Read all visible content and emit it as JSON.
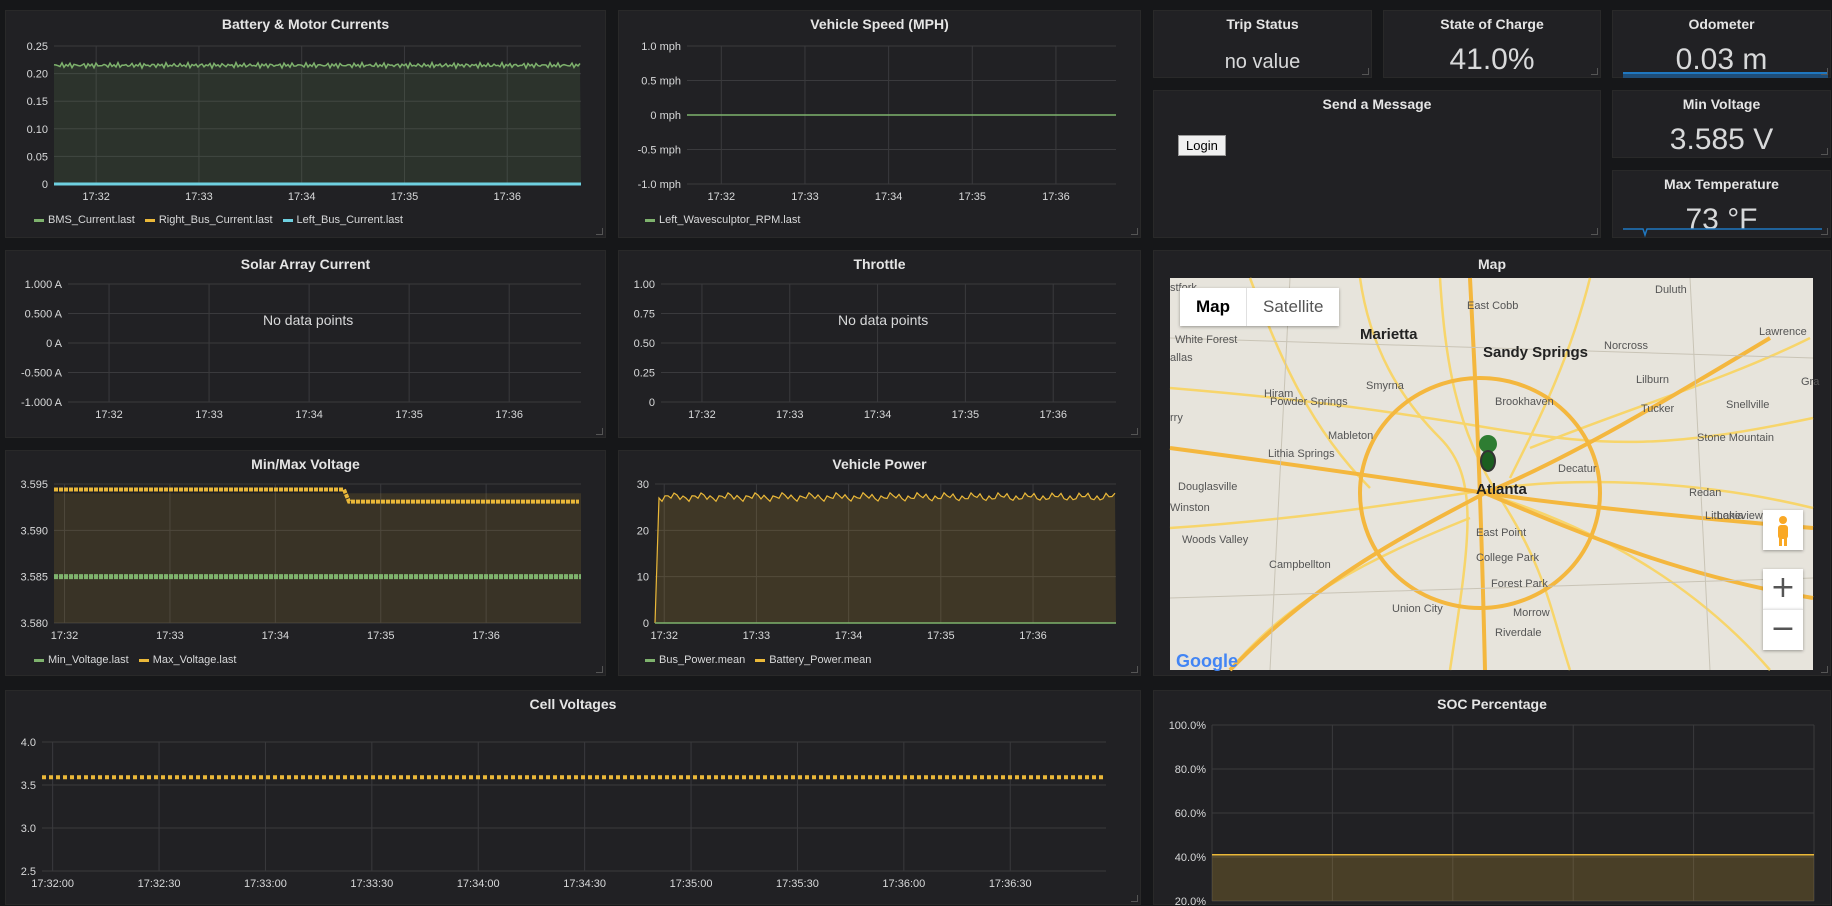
{
  "panels": {
    "battery": {
      "title": "Battery & Motor Currents",
      "legend": [
        {
          "name": "BMS_Current.last",
          "color": "#7eb26d"
        },
        {
          "name": "Right_Bus_Current.last",
          "color": "#eab839"
        },
        {
          "name": "Left_Bus_Current.last",
          "color": "#6ed0e0"
        }
      ],
      "yticks": [
        "0.25",
        "0.20",
        "0.15",
        "0.10",
        "0.05",
        "0"
      ]
    },
    "speed": {
      "title": "Vehicle Speed (MPH)",
      "legend": [
        {
          "name": "Left_Wavesculptor_RPM.last",
          "color": "#7eb26d"
        }
      ],
      "yticks": [
        "1.0 mph",
        "0.5 mph",
        "0 mph",
        "-0.5 mph",
        "-1.0 mph"
      ]
    },
    "solar": {
      "title": "Solar Array Current",
      "nodata": "No data points",
      "yticks": [
        "1.000 A",
        "0.500 A",
        "0 A",
        "-0.500 A",
        "-1.000 A"
      ]
    },
    "throttle": {
      "title": "Throttle",
      "nodata": "No data points",
      "yticks": [
        "1.00",
        "0.75",
        "0.50",
        "0.25",
        "0"
      ]
    },
    "minmax": {
      "title": "Min/Max Voltage",
      "legend": [
        {
          "name": "Min_Voltage.last",
          "color": "#7eb26d"
        },
        {
          "name": "Max_Voltage.last",
          "color": "#eab839"
        }
      ],
      "yticks": [
        "3.595",
        "3.590",
        "3.585",
        "3.580"
      ]
    },
    "power": {
      "title": "Vehicle Power",
      "legend": [
        {
          "name": "Bus_Power.mean",
          "color": "#7eb26d"
        },
        {
          "name": "Battery_Power.mean",
          "color": "#eab839"
        }
      ],
      "yticks": [
        "30",
        "20",
        "10",
        "0"
      ]
    },
    "cells": {
      "title": "Cell Voltages",
      "yticks": [
        "4.0",
        "3.5",
        "3.0",
        "2.5"
      ],
      "xticks": [
        "17:32:00",
        "17:32:30",
        "17:33:00",
        "17:33:30",
        "17:34:00",
        "17:34:30",
        "17:35:00",
        "17:35:30",
        "17:36:00",
        "17:36:30"
      ]
    },
    "soc": {
      "title": "SOC Percentage",
      "yticks": [
        "100.0%",
        "80.0%",
        "60.0%",
        "40.0%",
        "20.0%"
      ]
    },
    "xticks": [
      "17:32",
      "17:33",
      "17:34",
      "17:35",
      "17:36"
    ],
    "trip": {
      "title": "Trip Status",
      "value": "no value"
    },
    "charge": {
      "title": "State of Charge",
      "value": "41.0%"
    },
    "odometer": {
      "title": "Odometer",
      "value": "0.03 m"
    },
    "message": {
      "title": "Send a Message",
      "login": "Login"
    },
    "minvolt": {
      "title": "Min Voltage",
      "value": "3.585 V"
    },
    "maxtemp": {
      "title": "Max Temperature",
      "value": "73 °F"
    },
    "map": {
      "title": "Map",
      "type_map": "Map",
      "type_sat": "Satellite",
      "zoom_in": "+",
      "zoom_out": "−",
      "logo": "Google",
      "labels": [
        "Marietta",
        "East Cobb",
        "Sandy Springs",
        "Norcross",
        "Duluth",
        "Lawrence",
        "White Forest",
        "Smyrna",
        "Brookhaven",
        "Lilburn",
        "Powder Springs",
        "Hiram",
        "Mableton",
        "Tucker",
        "Snellville",
        "Stone Mountain",
        "Lithia Springs",
        "Decatur",
        "Atlanta",
        "Douglasville",
        "Redan",
        "Winston",
        "Lithonia",
        "Lakeview Estates",
        "Woods Valley",
        "East Point",
        "Campbellton",
        "College Park",
        "Forest Park",
        "Union City",
        "Morrow",
        "Riverdale",
        "stfork",
        "allas",
        "rry",
        "Gra"
      ]
    }
  },
  "chart_data": [
    {
      "type": "line",
      "title": "Battery & Motor Currents",
      "x": [
        "17:32",
        "17:33",
        "17:34",
        "17:35",
        "17:36"
      ],
      "ylim": [
        0,
        0.25
      ],
      "series": [
        {
          "name": "BMS_Current.last",
          "values": [
            0.215,
            0.215,
            0.215,
            0.215,
            0.215
          ]
        },
        {
          "name": "Right_Bus_Current.last",
          "values": [
            0,
            0,
            0,
            0,
            0
          ]
        },
        {
          "name": "Left_Bus_Current.last",
          "values": [
            0,
            0,
            0,
            0,
            0
          ]
        }
      ]
    },
    {
      "type": "line",
      "title": "Vehicle Speed (MPH)",
      "x": [
        "17:32",
        "17:33",
        "17:34",
        "17:35",
        "17:36"
      ],
      "ylim": [
        -1,
        1
      ],
      "series": [
        {
          "name": "Left_Wavesculptor_RPM.last",
          "values": [
            0,
            0,
            0,
            0,
            0
          ]
        }
      ]
    },
    {
      "type": "line",
      "title": "Min/Max Voltage",
      "x": [
        "17:32",
        "17:33",
        "17:34",
        "17:35",
        "17:36"
      ],
      "ylim": [
        3.58,
        3.595
      ],
      "series": [
        {
          "name": "Min_Voltage.last",
          "values": [
            3.585,
            3.585,
            3.585,
            3.585,
            3.585
          ]
        },
        {
          "name": "Max_Voltage.last",
          "values": [
            3.594,
            3.594,
            3.594,
            3.593,
            3.593
          ]
        }
      ]
    },
    {
      "type": "line",
      "title": "Vehicle Power",
      "x": [
        "17:32",
        "17:33",
        "17:34",
        "17:35",
        "17:36"
      ],
      "ylim": [
        0,
        30
      ],
      "series": [
        {
          "name": "Bus_Power.mean",
          "values": [
            0,
            0,
            0,
            0,
            0
          ]
        },
        {
          "name": "Battery_Power.mean",
          "values": [
            27,
            27,
            27.5,
            27.5,
            27
          ]
        }
      ]
    },
    {
      "type": "line",
      "title": "Cell Voltages",
      "x": [
        "17:32:00",
        "17:32:30",
        "17:33:00",
        "17:33:30",
        "17:34:00",
        "17:34:30",
        "17:35:00",
        "17:35:30",
        "17:36:00",
        "17:36:30"
      ],
      "ylim": [
        2.5,
        4.0
      ],
      "series": [
        {
          "values": [
            3.59,
            3.59,
            3.59,
            3.59,
            3.59,
            3.59,
            3.59,
            3.59,
            3.59,
            3.59
          ]
        }
      ]
    },
    {
      "type": "area",
      "title": "SOC Percentage",
      "ylim": [
        20,
        100
      ],
      "series": [
        {
          "values": [
            41,
            41,
            41,
            41,
            41
          ]
        }
      ]
    }
  ]
}
